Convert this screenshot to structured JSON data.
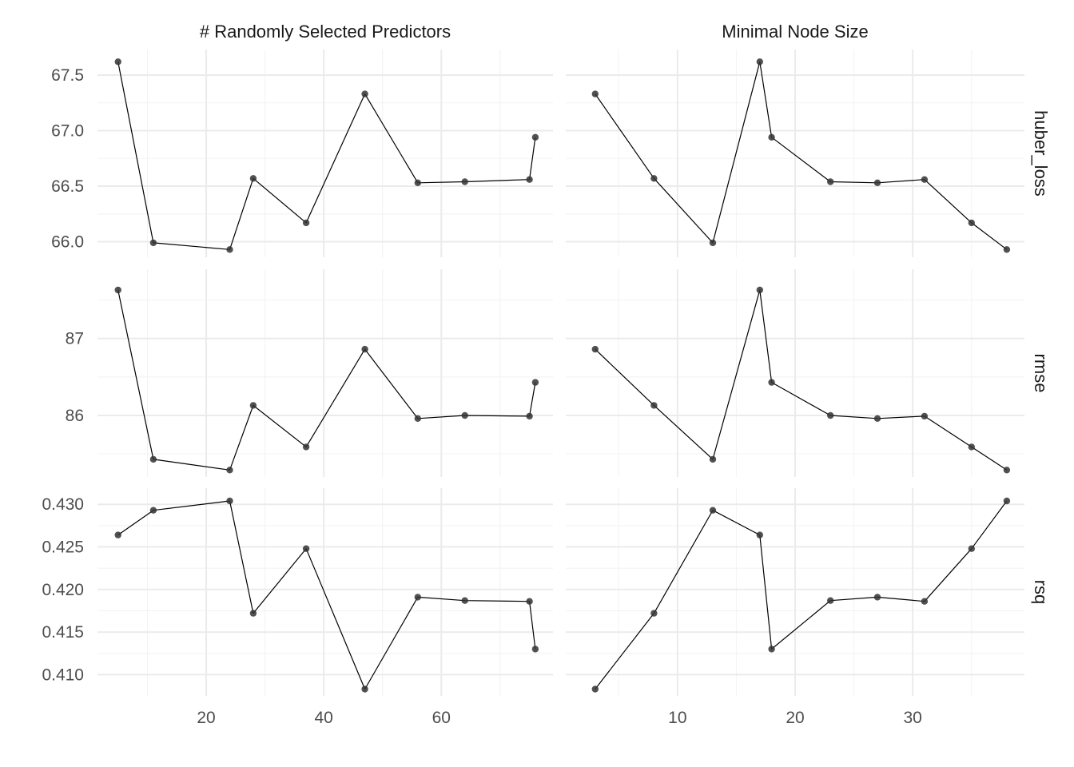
{
  "chart_data": {
    "type": "line",
    "grid": true,
    "legend": "none",
    "colors": {
      "line": "#000000",
      "point": "#333333",
      "grid_major": "#ebebeb",
      "grid_minor": "#f3f3f3"
    },
    "columns": [
      {
        "label": "# Randomly Selected Predictors",
        "xticks": [
          20,
          40,
          60
        ],
        "xlim": [
          1.5,
          79
        ]
      },
      {
        "label": "Minimal Node Size",
        "xticks": [
          10,
          20,
          30
        ],
        "xlim": [
          0.5,
          39.5
        ]
      }
    ],
    "rows": [
      {
        "label": "huber_loss",
        "yticks": [
          "65.5",
          "66.0",
          "66.5",
          "67.0",
          "67.5",
          "68.0"
        ],
        "ylim": [
          65.86,
          67.73
        ]
      },
      {
        "label": "rmse",
        "yticks": [
          "85",
          "86",
          "87",
          "88"
        ],
        "ylim": [
          85.2,
          87.9
        ]
      },
      {
        "label": "rsq",
        "yticks": [
          "0.410",
          "0.415",
          "0.420",
          "0.425",
          "0.430"
        ],
        "ylim": [
          0.4075,
          0.4319
        ]
      }
    ],
    "panels": [
      {
        "row": "huber_loss",
        "col": "# Randomly Selected Predictors",
        "points": [
          [
            5,
            67.62
          ],
          [
            11,
            65.99
          ],
          [
            24,
            65.93
          ],
          [
            28,
            66.57
          ],
          [
            37,
            66.17
          ],
          [
            47,
            67.33
          ],
          [
            56,
            66.53
          ],
          [
            64,
            66.54
          ],
          [
            75,
            66.56
          ],
          [
            76,
            66.94
          ]
        ]
      },
      {
        "row": "huber_loss",
        "col": "Minimal Node Size",
        "points": [
          [
            3,
            67.33
          ],
          [
            8,
            66.57
          ],
          [
            13,
            65.99
          ],
          [
            17,
            67.62
          ],
          [
            18,
            66.94
          ],
          [
            23,
            66.54
          ],
          [
            27,
            66.53
          ],
          [
            31,
            66.56
          ],
          [
            35,
            66.17
          ],
          [
            38,
            65.93
          ]
        ]
      },
      {
        "row": "rmse",
        "col": "# Randomly Selected Predictors",
        "points": [
          [
            5,
            87.63
          ],
          [
            11,
            85.43
          ],
          [
            24,
            85.29
          ],
          [
            28,
            86.13
          ],
          [
            37,
            85.59
          ],
          [
            47,
            86.86
          ],
          [
            56,
            85.96
          ],
          [
            64,
            86.0
          ],
          [
            75,
            85.99
          ],
          [
            76,
            86.43
          ]
        ]
      },
      {
        "row": "rmse",
        "col": "Minimal Node Size",
        "points": [
          [
            3,
            86.86
          ],
          [
            8,
            86.13
          ],
          [
            13,
            85.43
          ],
          [
            17,
            87.63
          ],
          [
            18,
            86.43
          ],
          [
            23,
            86.0
          ],
          [
            27,
            85.96
          ],
          [
            31,
            85.99
          ],
          [
            35,
            85.59
          ],
          [
            38,
            85.29
          ]
        ]
      },
      {
        "row": "rsq",
        "col": "# Randomly Selected Predictors",
        "points": [
          [
            5,
            0.4264
          ],
          [
            11,
            0.4293
          ],
          [
            24,
            0.4304
          ],
          [
            28,
            0.4172
          ],
          [
            37,
            0.4248
          ],
          [
            47,
            0.4083
          ],
          [
            56,
            0.4191
          ],
          [
            64,
            0.4187
          ],
          [
            75,
            0.4186
          ],
          [
            76,
            0.413
          ]
        ]
      },
      {
        "row": "rsq",
        "col": "Minimal Node Size",
        "points": [
          [
            3,
            0.4083
          ],
          [
            8,
            0.4172
          ],
          [
            13,
            0.4293
          ],
          [
            17,
            0.4264
          ],
          [
            18,
            0.413
          ],
          [
            23,
            0.4187
          ],
          [
            27,
            0.4191
          ],
          [
            31,
            0.4186
          ],
          [
            35,
            0.4248
          ],
          [
            38,
            0.4304
          ]
        ]
      }
    ]
  }
}
